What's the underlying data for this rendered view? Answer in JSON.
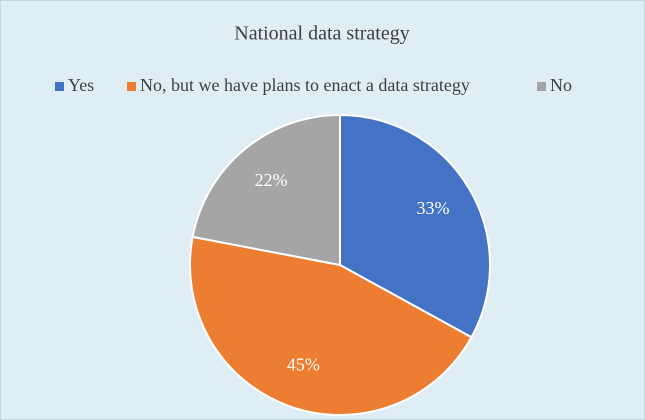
{
  "chart_data": {
    "type": "pie",
    "title": "National data strategy",
    "categories": [
      "Yes",
      "No, but we have plans to enact a data strategy",
      "No"
    ],
    "values": [
      33,
      45,
      22
    ],
    "value_labels": [
      "33%",
      "45%",
      "22%"
    ],
    "colors": [
      "#4472c4",
      "#ed7d31",
      "#a5a5a5"
    ],
    "legend": "top"
  }
}
